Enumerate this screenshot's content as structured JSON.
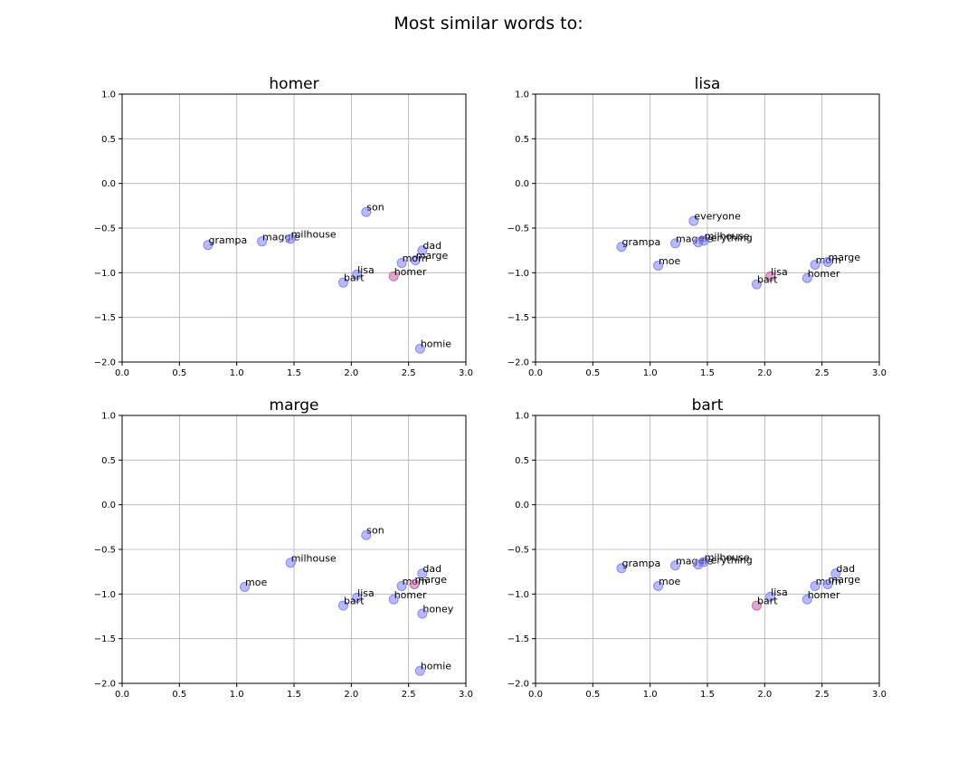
{
  "figure_title": "Most similar words to:",
  "chart_data": [
    {
      "type": "scatter",
      "title": "homer",
      "xlim": [
        0.0,
        3.0
      ],
      "ylim": [
        -2.0,
        1.0
      ],
      "x_ticks": [
        "0.0",
        "0.5",
        "1.0",
        "1.5",
        "2.0",
        "2.5",
        "3.0"
      ],
      "y_ticks": [
        "1.0",
        "0.5",
        "0.0",
        "−0.5",
        "−1.0",
        "−1.5",
        "−2.0"
      ],
      "grid": true,
      "highlight_color": "#c060a0",
      "point_color": "#8080ff",
      "points": [
        {
          "label": "son",
          "x": 2.13,
          "y": -0.32
        },
        {
          "label": "grampa",
          "x": 0.75,
          "y": -0.69
        },
        {
          "label": "maggie",
          "x": 1.22,
          "y": -0.65
        },
        {
          "label": "milhouse",
          "x": 1.47,
          "y": -0.62
        },
        {
          "label": "dad",
          "x": 2.62,
          "y": -0.75
        },
        {
          "label": "marge",
          "x": 2.56,
          "y": -0.86
        },
        {
          "label": "mom",
          "x": 2.44,
          "y": -0.89
        },
        {
          "label": "lisa",
          "x": 2.05,
          "y": -1.02
        },
        {
          "label": "homer",
          "x": 2.37,
          "y": -1.04,
          "highlight": true
        },
        {
          "label": "bart",
          "x": 1.93,
          "y": -1.11
        },
        {
          "label": "homie",
          "x": 2.6,
          "y": -1.85
        }
      ]
    },
    {
      "type": "scatter",
      "title": "lisa",
      "xlim": [
        0.0,
        3.0
      ],
      "ylim": [
        -2.0,
        1.0
      ],
      "x_ticks": [
        "0.0",
        "0.5",
        "1.0",
        "1.5",
        "2.0",
        "2.5",
        "3.0"
      ],
      "y_ticks": [
        "1.0",
        "0.5",
        "0.0",
        "−0.5",
        "−1.0",
        "−1.5",
        "−2.0"
      ],
      "grid": true,
      "highlight_color": "#c060a0",
      "point_color": "#8080ff",
      "points": [
        {
          "label": "everyone",
          "x": 1.38,
          "y": -0.42
        },
        {
          "label": "grampa",
          "x": 0.75,
          "y": -0.71
        },
        {
          "label": "maggie",
          "x": 1.22,
          "y": -0.67
        },
        {
          "label": "everything",
          "x": 1.42,
          "y": -0.66
        },
        {
          "label": "milhouse",
          "x": 1.47,
          "y": -0.64
        },
        {
          "label": "moe",
          "x": 1.07,
          "y": -0.92
        },
        {
          "label": "mom",
          "x": 2.44,
          "y": -0.91
        },
        {
          "label": "marge",
          "x": 2.55,
          "y": -0.88
        },
        {
          "label": "lisa",
          "x": 2.05,
          "y": -1.04,
          "highlight": true
        },
        {
          "label": "homer",
          "x": 2.37,
          "y": -1.06
        },
        {
          "label": "bart",
          "x": 1.93,
          "y": -1.13
        }
      ]
    },
    {
      "type": "scatter",
      "title": "marge",
      "xlim": [
        0.0,
        3.0
      ],
      "ylim": [
        -2.0,
        1.0
      ],
      "x_ticks": [
        "0.0",
        "0.5",
        "1.0",
        "1.5",
        "2.0",
        "2.5",
        "3.0"
      ],
      "y_ticks": [
        "1.0",
        "0.5",
        "0.0",
        "−0.5",
        "−1.0",
        "−1.5",
        "−2.0"
      ],
      "grid": true,
      "highlight_color": "#c060a0",
      "point_color": "#8080ff",
      "points": [
        {
          "label": "son",
          "x": 2.13,
          "y": -0.34
        },
        {
          "label": "milhouse",
          "x": 1.47,
          "y": -0.65
        },
        {
          "label": "moe",
          "x": 1.07,
          "y": -0.92
        },
        {
          "label": "dad",
          "x": 2.62,
          "y": -0.77
        },
        {
          "label": "mom",
          "x": 2.44,
          "y": -0.91
        },
        {
          "label": "marge",
          "x": 2.55,
          "y": -0.89,
          "highlight": true
        },
        {
          "label": "lisa",
          "x": 2.05,
          "y": -1.04
        },
        {
          "label": "homer",
          "x": 2.37,
          "y": -1.06
        },
        {
          "label": "bart",
          "x": 1.93,
          "y": -1.13
        },
        {
          "label": "honey",
          "x": 2.62,
          "y": -1.22
        },
        {
          "label": "homie",
          "x": 2.6,
          "y": -1.86
        }
      ]
    },
    {
      "type": "scatter",
      "title": "bart",
      "xlim": [
        0.0,
        3.0
      ],
      "ylim": [
        -2.0,
        1.0
      ],
      "x_ticks": [
        "0.0",
        "0.5",
        "1.0",
        "1.5",
        "2.0",
        "2.5",
        "3.0"
      ],
      "y_ticks": [
        "1.0",
        "0.5",
        "0.0",
        "−0.5",
        "−1.0",
        "−1.5",
        "−2.0"
      ],
      "grid": true,
      "highlight_color": "#c060a0",
      "point_color": "#8080ff",
      "points": [
        {
          "label": "grampa",
          "x": 0.75,
          "y": -0.71
        },
        {
          "label": "maggie",
          "x": 1.22,
          "y": -0.68
        },
        {
          "label": "everything",
          "x": 1.42,
          "y": -0.67
        },
        {
          "label": "milhouse",
          "x": 1.47,
          "y": -0.64
        },
        {
          "label": "moe",
          "x": 1.07,
          "y": -0.91
        },
        {
          "label": "dad",
          "x": 2.62,
          "y": -0.77
        },
        {
          "label": "mom",
          "x": 2.44,
          "y": -0.91
        },
        {
          "label": "marge",
          "x": 2.55,
          "y": -0.89
        },
        {
          "label": "lisa",
          "x": 2.05,
          "y": -1.03
        },
        {
          "label": "homer",
          "x": 2.37,
          "y": -1.06
        },
        {
          "label": "bart",
          "x": 1.93,
          "y": -1.13,
          "highlight": true
        }
      ]
    }
  ]
}
